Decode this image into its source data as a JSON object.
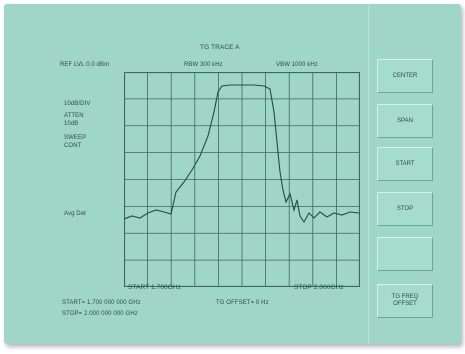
{
  "header": {
    "trace_title": "TG TRACE A",
    "ref_level": "REF LVL 0.0 dBm",
    "rbw": "RBW 300 kHz",
    "vbw": "VBW 1000 kHz"
  },
  "side_labels": {
    "scale": "10dB/DIV",
    "atten_label": "ATTEN",
    "atten_value": "10dB",
    "sweep_label": "SWEEP",
    "sweep_value": "CONT",
    "avg_det": "Avg Det"
  },
  "axis": {
    "start_label": "START 1.700GHz",
    "stop_label": "STOP 2.000GHz"
  },
  "readouts": {
    "start": "START= 1.700 000 000 GHz",
    "stop": "STOP= 2.000 000 000 GHz",
    "tg_offset": "TG OFFSET= 0 Hz"
  },
  "softkeys": {
    "center": "CENTER",
    "span": "SPAN",
    "start": "START",
    "stop": "STOP",
    "blank": "",
    "tg_offset": "TG FREQ OFFSET"
  },
  "colors": {
    "screen_bg": "#9fd6c6",
    "grid": "#3d6a5c",
    "trace": "#2b4a40"
  }
}
